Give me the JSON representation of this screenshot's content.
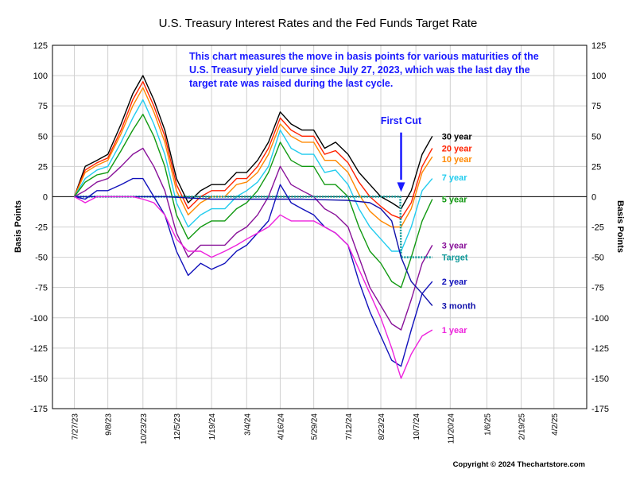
{
  "chart_data": {
    "type": "line",
    "title": "U.S. Treasury Interest Rates and the Fed Funds Target Rate",
    "annotation": "This chart measures the move in basis points for various maturities of the U.S. Treasury yield curve since July 27, 2023, which was the last day the target rate was raised during the last cycle.",
    "annotation_lines": [
      "This chart measures the move in basis points for various maturities of the",
      "U.S. Treasury yield curve since July 27, 2023, which was the last day the",
      "target rate was raised during the last cycle."
    ],
    "first_cut_label": "First Cut",
    "first_cut_x": "2024-09-18",
    "ylabel_left": "Basis Points",
    "ylabel_right": "Basis Points",
    "ylim": [
      -175,
      125
    ],
    "yticks": [
      125,
      100,
      75,
      50,
      25,
      0,
      -25,
      -50,
      -75,
      -100,
      -125,
      -150,
      -175
    ],
    "xlim": [
      "2023-06-29",
      "2025-05-14"
    ],
    "xticks": [
      {
        "label": "7/27/23",
        "date": "2023-07-27"
      },
      {
        "label": "9/8/23",
        "date": "2023-09-08"
      },
      {
        "label": "10/23/23",
        "date": "2023-10-23"
      },
      {
        "label": "12/5/23",
        "date": "2023-12-05"
      },
      {
        "label": "1/19/24",
        "date": "2024-01-19"
      },
      {
        "label": "3/4/24",
        "date": "2024-03-04"
      },
      {
        "label": "4/16/24",
        "date": "2024-04-16"
      },
      {
        "label": "5/29/24",
        "date": "2024-05-29"
      },
      {
        "label": "7/12/24",
        "date": "2024-07-12"
      },
      {
        "label": "8/23/24",
        "date": "2024-08-23"
      },
      {
        "label": "10/7/24",
        "date": "2024-10-07"
      },
      {
        "label": "11/20/24",
        "date": "2024-11-20"
      },
      {
        "label": "1/6/25",
        "date": "2025-01-06"
      },
      {
        "label": "2/19/25",
        "date": "2025-02-19"
      },
      {
        "label": "4/2/25",
        "date": "2025-04-02"
      }
    ],
    "grid": true,
    "series": [
      {
        "name": "30 year",
        "color": "#000000",
        "label_y": 50,
        "x": [
          "2023-07-27",
          "2023-08-10",
          "2023-08-25",
          "2023-09-08",
          "2023-09-25",
          "2023-10-10",
          "2023-10-23",
          "2023-11-06",
          "2023-11-20",
          "2023-12-05",
          "2023-12-20",
          "2024-01-05",
          "2024-01-19",
          "2024-02-05",
          "2024-02-20",
          "2024-03-04",
          "2024-03-18",
          "2024-04-01",
          "2024-04-16",
          "2024-04-30",
          "2024-05-14",
          "2024-05-29",
          "2024-06-12",
          "2024-06-26",
          "2024-07-12",
          "2024-07-26",
          "2024-08-09",
          "2024-08-23",
          "2024-09-06",
          "2024-09-18",
          "2024-10-01",
          "2024-10-15",
          "2024-10-28"
        ],
        "values": [
          0,
          25,
          30,
          35,
          60,
          85,
          100,
          80,
          55,
          15,
          -5,
          5,
          10,
          10,
          20,
          20,
          30,
          45,
          70,
          60,
          55,
          55,
          40,
          45,
          35,
          20,
          10,
          0,
          -5,
          -10,
          5,
          35,
          50
        ]
      },
      {
        "name": "20 year",
        "color": "#ff2200",
        "label_y": 40,
        "x": [
          "2023-07-27",
          "2023-08-10",
          "2023-08-25",
          "2023-09-08",
          "2023-09-25",
          "2023-10-10",
          "2023-10-23",
          "2023-11-06",
          "2023-11-20",
          "2023-12-05",
          "2023-12-20",
          "2024-01-05",
          "2024-01-19",
          "2024-02-05",
          "2024-02-20",
          "2024-03-04",
          "2024-03-18",
          "2024-04-01",
          "2024-04-16",
          "2024-04-30",
          "2024-05-14",
          "2024-05-29",
          "2024-06-12",
          "2024-06-26",
          "2024-07-12",
          "2024-07-26",
          "2024-08-09",
          "2024-08-23",
          "2024-09-06",
          "2024-09-18",
          "2024-10-01",
          "2024-10-15",
          "2024-10-28"
        ],
        "values": [
          0,
          22,
          28,
          32,
          55,
          80,
          95,
          75,
          50,
          10,
          -10,
          0,
          5,
          5,
          15,
          15,
          25,
          40,
          65,
          55,
          50,
          50,
          35,
          38,
          28,
          12,
          0,
          -8,
          -15,
          -18,
          -5,
          25,
          40
        ]
      },
      {
        "name": "10 year",
        "color": "#ff8800",
        "label_y": 31,
        "x": [
          "2023-07-27",
          "2023-08-10",
          "2023-08-25",
          "2023-09-08",
          "2023-09-25",
          "2023-10-10",
          "2023-10-23",
          "2023-11-06",
          "2023-11-20",
          "2023-12-05",
          "2023-12-20",
          "2024-01-05",
          "2024-01-19",
          "2024-02-05",
          "2024-02-20",
          "2024-03-04",
          "2024-03-18",
          "2024-04-01",
          "2024-04-16",
          "2024-04-30",
          "2024-05-14",
          "2024-05-29",
          "2024-06-12",
          "2024-06-26",
          "2024-07-12",
          "2024-07-26",
          "2024-08-09",
          "2024-08-23",
          "2024-09-06",
          "2024-09-18",
          "2024-10-01",
          "2024-10-15",
          "2024-10-28"
        ],
        "values": [
          0,
          20,
          26,
          30,
          52,
          75,
          90,
          70,
          45,
          5,
          -15,
          -5,
          0,
          0,
          10,
          12,
          20,
          35,
          60,
          50,
          45,
          45,
          30,
          30,
          20,
          2,
          -12,
          -20,
          -25,
          -25,
          -10,
          20,
          33
        ]
      },
      {
        "name": "7 year",
        "color": "#22ccee",
        "label_y": 16,
        "x": [
          "2023-07-27",
          "2023-08-10",
          "2023-08-25",
          "2023-09-08",
          "2023-09-25",
          "2023-10-10",
          "2023-10-23",
          "2023-11-06",
          "2023-11-20",
          "2023-12-05",
          "2023-12-20",
          "2024-01-05",
          "2024-01-19",
          "2024-02-05",
          "2024-02-20",
          "2024-03-04",
          "2024-03-18",
          "2024-04-01",
          "2024-04-16",
          "2024-04-30",
          "2024-05-14",
          "2024-05-29",
          "2024-06-12",
          "2024-06-26",
          "2024-07-12",
          "2024-07-26",
          "2024-08-09",
          "2024-08-23",
          "2024-09-06",
          "2024-09-18",
          "2024-10-01",
          "2024-10-15",
          "2024-10-28"
        ],
        "values": [
          0,
          15,
          22,
          25,
          45,
          65,
          80,
          60,
          35,
          -5,
          -25,
          -15,
          -10,
          -10,
          0,
          5,
          12,
          25,
          55,
          40,
          35,
          35,
          20,
          22,
          10,
          -10,
          -25,
          -35,
          -45,
          -45,
          -25,
          5,
          15
        ]
      },
      {
        "name": "5 year",
        "color": "#119911",
        "label_y": -2,
        "x": [
          "2023-07-27",
          "2023-08-10",
          "2023-08-25",
          "2023-09-08",
          "2023-09-25",
          "2023-10-10",
          "2023-10-23",
          "2023-11-06",
          "2023-11-20",
          "2023-12-05",
          "2023-12-20",
          "2024-01-05",
          "2024-01-19",
          "2024-02-05",
          "2024-02-20",
          "2024-03-04",
          "2024-03-18",
          "2024-04-01",
          "2024-04-16",
          "2024-04-30",
          "2024-05-14",
          "2024-05-29",
          "2024-06-12",
          "2024-06-26",
          "2024-07-12",
          "2024-07-26",
          "2024-08-09",
          "2024-08-23",
          "2024-09-06",
          "2024-09-18",
          "2024-10-01",
          "2024-10-15",
          "2024-10-28"
        ],
        "values": [
          0,
          12,
          18,
          20,
          38,
          55,
          68,
          50,
          25,
          -15,
          -35,
          -25,
          -20,
          -20,
          -10,
          -5,
          5,
          20,
          45,
          30,
          25,
          25,
          10,
          10,
          0,
          -25,
          -45,
          -55,
          -70,
          -75,
          -50,
          -20,
          -2
        ]
      },
      {
        "name": "3 year",
        "color": "#881199",
        "label_y": -40,
        "x": [
          "2023-07-27",
          "2023-08-10",
          "2023-08-25",
          "2023-09-08",
          "2023-09-25",
          "2023-10-10",
          "2023-10-23",
          "2023-11-06",
          "2023-11-20",
          "2023-12-05",
          "2023-12-20",
          "2024-01-05",
          "2024-01-19",
          "2024-02-05",
          "2024-02-20",
          "2024-03-04",
          "2024-03-18",
          "2024-04-01",
          "2024-04-16",
          "2024-04-30",
          "2024-05-14",
          "2024-05-29",
          "2024-06-12",
          "2024-06-26",
          "2024-07-12",
          "2024-07-26",
          "2024-08-09",
          "2024-08-23",
          "2024-09-06",
          "2024-09-18",
          "2024-10-01",
          "2024-10-15",
          "2024-10-28"
        ],
        "values": [
          0,
          5,
          12,
          15,
          25,
          35,
          40,
          25,
          5,
          -30,
          -50,
          -40,
          -40,
          -40,
          -30,
          -25,
          -15,
          0,
          25,
          10,
          5,
          0,
          -10,
          -15,
          -25,
          -50,
          -75,
          -90,
          -105,
          -110,
          -85,
          -55,
          -40
        ]
      },
      {
        "name": "Target",
        "color": "#119999",
        "label_y": -50,
        "dashed": true,
        "x": [
          "2023-07-27",
          "2024-09-17",
          "2024-09-18",
          "2024-10-28"
        ],
        "values": [
          0,
          0,
          -50,
          -50
        ]
      },
      {
        "name": "2 year",
        "color": "#1111bb",
        "label_y": -70,
        "x": [
          "2023-07-27",
          "2023-08-10",
          "2023-08-25",
          "2023-09-08",
          "2023-09-25",
          "2023-10-10",
          "2023-10-23",
          "2023-11-06",
          "2023-11-20",
          "2023-12-05",
          "2023-12-20",
          "2024-01-05",
          "2024-01-19",
          "2024-02-05",
          "2024-02-20",
          "2024-03-04",
          "2024-03-18",
          "2024-04-01",
          "2024-04-16",
          "2024-04-30",
          "2024-05-14",
          "2024-05-29",
          "2024-06-12",
          "2024-06-26",
          "2024-07-12",
          "2024-07-26",
          "2024-08-09",
          "2024-08-23",
          "2024-09-06",
          "2024-09-18",
          "2024-10-01",
          "2024-10-15",
          "2024-10-28"
        ],
        "values": [
          0,
          -2,
          5,
          5,
          10,
          15,
          15,
          0,
          -15,
          -45,
          -65,
          -55,
          -60,
          -55,
          -45,
          -40,
          -30,
          -20,
          10,
          -5,
          -10,
          -15,
          -25,
          -30,
          -40,
          -70,
          -95,
          -115,
          -135,
          -140,
          -110,
          -80,
          -70
        ]
      },
      {
        "name": "3 month",
        "color": "#1111aa",
        "label_y": -90,
        "x": [
          "2023-07-27",
          "2023-09-25",
          "2023-11-20",
          "2024-01-19",
          "2024-03-18",
          "2024-05-14",
          "2024-07-12",
          "2024-08-09",
          "2024-08-23",
          "2024-09-06",
          "2024-09-18",
          "2024-10-01",
          "2024-10-15",
          "2024-10-28"
        ],
        "values": [
          0,
          0,
          0,
          -2,
          -2,
          -2,
          -3,
          -5,
          -10,
          -20,
          -50,
          -70,
          -80,
          -90
        ]
      },
      {
        "name": "1 year",
        "color": "#ee22dd",
        "label_y": -110,
        "x": [
          "2023-07-27",
          "2023-08-10",
          "2023-08-25",
          "2023-09-08",
          "2023-09-25",
          "2023-10-10",
          "2023-10-23",
          "2023-11-06",
          "2023-11-20",
          "2023-12-05",
          "2023-12-20",
          "2024-01-05",
          "2024-01-19",
          "2024-02-05",
          "2024-02-20",
          "2024-03-04",
          "2024-03-18",
          "2024-04-01",
          "2024-04-16",
          "2024-04-30",
          "2024-05-14",
          "2024-05-29",
          "2024-06-12",
          "2024-06-26",
          "2024-07-12",
          "2024-07-26",
          "2024-08-09",
          "2024-08-23",
          "2024-09-06",
          "2024-09-18",
          "2024-10-01",
          "2024-10-15",
          "2024-10-28"
        ],
        "values": [
          0,
          -5,
          0,
          0,
          0,
          0,
          -2,
          -5,
          -15,
          -35,
          -45,
          -45,
          -50,
          -45,
          -40,
          -35,
          -30,
          -25,
          -15,
          -20,
          -20,
          -20,
          -25,
          -30,
          -40,
          -60,
          -80,
          -100,
          -125,
          -150,
          -130,
          -115,
          -110
        ]
      }
    ]
  },
  "copyright": "Copyright © 2024 Thechartstore.com"
}
